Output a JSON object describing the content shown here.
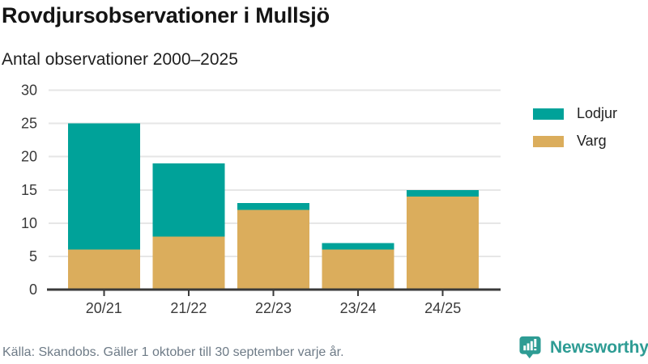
{
  "chart_data": {
    "type": "bar",
    "stacked": true,
    "title": "Rovdjursobservationer i Mullsjö",
    "subtitle": "Antal observationer 2000–2025",
    "categories": [
      "20/21",
      "21/22",
      "22/23",
      "23/24",
      "24/25"
    ],
    "series": [
      {
        "name": "Lodjur",
        "color": "#00A299",
        "values": [
          19,
          11,
          1,
          1,
          1
        ]
      },
      {
        "name": "Varg",
        "color": "#DBAD5C",
        "values": [
          6,
          8,
          12,
          6,
          14
        ]
      }
    ],
    "stack_order_bottom_to_top": [
      "Varg",
      "Lodjur"
    ],
    "totals": [
      25,
      19,
      13,
      7,
      15
    ],
    "ylim": [
      0,
      30
    ],
    "yticks": [
      0,
      5,
      10,
      15,
      20,
      25,
      30
    ],
    "xlabel": "",
    "ylabel": "",
    "grid": "horizontal-gridlines",
    "legend_position": "right",
    "source": "Källa: Skandobs. Gäller 1 oktober till 30 september varje år."
  },
  "logo": {
    "text": "Newsworthy",
    "icon": "newsworthy-speech-bubble-bar-chart-icon",
    "color": "#2E9C94"
  },
  "colors": {
    "gridline": "#E6E6E6",
    "axis": "#3A3A3A",
    "axis_text": "#3A3A3A",
    "title_text": "#141414",
    "muted_text": "#6E7B87",
    "background": "#FFFFFF"
  }
}
